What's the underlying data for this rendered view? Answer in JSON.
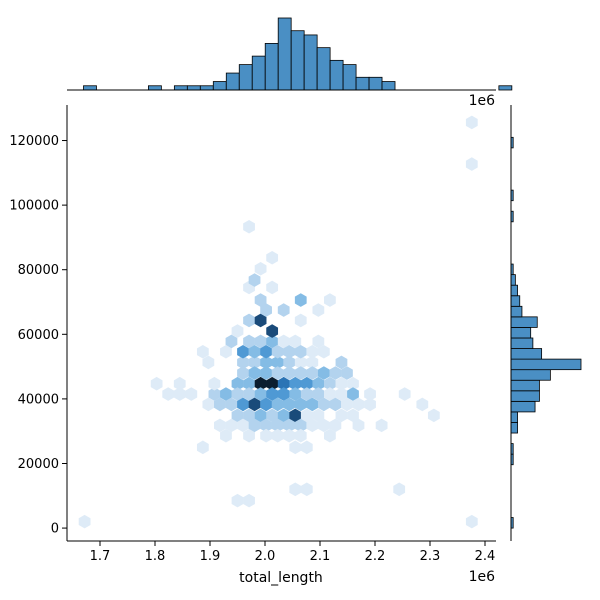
{
  "chart_data": {
    "type": "hexbin_joint",
    "xlabel": "total_length",
    "ylabel": "",
    "x_offset_label": "1e6",
    "marginal_x_offset_label": "1e6",
    "xlim": [
      1.64,
      2.42
    ],
    "ylim": [
      -4000,
      131000
    ],
    "x_ticks": [
      1.7,
      1.8,
      1.9,
      2.0,
      2.1,
      2.2,
      2.3,
      2.4
    ],
    "x_tick_labels": [
      "1.7",
      "1.8",
      "1.9",
      "2.0",
      "2.1",
      "2.2",
      "2.3",
      "2.4"
    ],
    "y_ticks": [
      0,
      20000,
      40000,
      60000,
      80000,
      100000,
      120000
    ],
    "y_tick_labels": [
      "0",
      "20000",
      "40000",
      "60000",
      "80000",
      "100000",
      "120000"
    ],
    "colors": {
      "hex_ramp": [
        "#deebf7",
        "#b3d3ee",
        "#84bce5",
        "#4f99d4",
        "#2b74b5",
        "#1a4b7a",
        "#0b1e30"
      ],
      "bar_fill": "#4a8fc4",
      "bar_edge": "#000000",
      "axis": "#000000"
    },
    "hexbins": [
      [
        1.672,
        2000,
        1
      ],
      [
        1.803,
        44700,
        1
      ],
      [
        1.824,
        41500,
        1
      ],
      [
        1.845,
        44700,
        1
      ],
      [
        1.845,
        41500,
        1
      ],
      [
        1.866,
        41500,
        1
      ],
      [
        1.887,
        54600,
        1
      ],
      [
        1.887,
        25000,
        1
      ],
      [
        1.897,
        38300,
        1
      ],
      [
        1.897,
        51300,
        1
      ],
      [
        1.908,
        41500,
        2
      ],
      [
        1.908,
        44700,
        1
      ],
      [
        1.918,
        38300,
        2
      ],
      [
        1.918,
        31800,
        1
      ],
      [
        1.929,
        41500,
        3
      ],
      [
        1.929,
        54600,
        1
      ],
      [
        1.929,
        28600,
        1
      ],
      [
        1.939,
        38300,
        2
      ],
      [
        1.939,
        31800,
        1
      ],
      [
        1.939,
        57800,
        2
      ],
      [
        1.95,
        44700,
        3
      ],
      [
        1.95,
        41500,
        2
      ],
      [
        1.95,
        34900,
        2
      ],
      [
        1.95,
        61000,
        1
      ],
      [
        1.95,
        8500,
        1
      ],
      [
        1.96,
        38300,
        4
      ],
      [
        1.96,
        51300,
        2
      ],
      [
        1.96,
        54600,
        4
      ],
      [
        1.96,
        31800,
        1
      ],
      [
        1.96,
        48000,
        2
      ],
      [
        1.971,
        44700,
        3
      ],
      [
        1.971,
        41500,
        2
      ],
      [
        1.971,
        57800,
        2
      ],
      [
        1.971,
        64300,
        2
      ],
      [
        1.971,
        93300,
        1
      ],
      [
        1.971,
        74500,
        1
      ],
      [
        1.971,
        8500,
        1
      ],
      [
        1.971,
        28600,
        1
      ],
      [
        1.971,
        34900,
        2
      ],
      [
        1.981,
        38300,
        6
      ],
      [
        1.981,
        51300,
        2
      ],
      [
        1.981,
        54600,
        3
      ],
      [
        1.981,
        31800,
        2
      ],
      [
        1.981,
        48000,
        3
      ],
      [
        1.981,
        76800,
        2
      ],
      [
        1.992,
        44700,
        7
      ],
      [
        1.992,
        41500,
        3
      ],
      [
        1.992,
        57800,
        2
      ],
      [
        1.992,
        64300,
        6
      ],
      [
        1.992,
        34900,
        3
      ],
      [
        1.992,
        70600,
        2
      ],
      [
        1.992,
        80300,
        1
      ],
      [
        2.002,
        38300,
        4
      ],
      [
        2.002,
        51300,
        3
      ],
      [
        2.002,
        54600,
        4
      ],
      [
        2.002,
        31800,
        2
      ],
      [
        2.002,
        48000,
        3
      ],
      [
        2.002,
        67500,
        2
      ],
      [
        2.002,
        28600,
        1
      ],
      [
        2.013,
        44700,
        7
      ],
      [
        2.013,
        41500,
        4
      ],
      [
        2.013,
        57800,
        3
      ],
      [
        2.013,
        61000,
        6
      ],
      [
        2.013,
        34900,
        2
      ],
      [
        2.013,
        74500,
        1
      ],
      [
        2.013,
        83700,
        1
      ],
      [
        2.023,
        38300,
        3
      ],
      [
        2.023,
        51300,
        3
      ],
      [
        2.023,
        54600,
        2
      ],
      [
        2.023,
        31800,
        2
      ],
      [
        2.023,
        48000,
        2
      ],
      [
        2.023,
        28600,
        1
      ],
      [
        2.034,
        44700,
        5
      ],
      [
        2.034,
        41500,
        4
      ],
      [
        2.034,
        57800,
        1
      ],
      [
        2.034,
        34900,
        3
      ],
      [
        2.034,
        67500,
        2
      ],
      [
        2.044,
        38300,
        3
      ],
      [
        2.044,
        51300,
        2
      ],
      [
        2.044,
        54600,
        2
      ],
      [
        2.044,
        31800,
        2
      ],
      [
        2.044,
        48000,
        2
      ],
      [
        2.044,
        28600,
        1
      ],
      [
        2.055,
        44700,
        4
      ],
      [
        2.055,
        41500,
        3
      ],
      [
        2.055,
        57800,
        1
      ],
      [
        2.055,
        34900,
        6
      ],
      [
        2.055,
        25000,
        1
      ],
      [
        2.055,
        12000,
        1
      ],
      [
        2.065,
        38300,
        3
      ],
      [
        2.065,
        51300,
        1
      ],
      [
        2.065,
        54600,
        2
      ],
      [
        2.065,
        31800,
        2
      ],
      [
        2.065,
        48000,
        2
      ],
      [
        2.065,
        70600,
        3
      ],
      [
        2.065,
        64300,
        1
      ],
      [
        2.065,
        28600,
        1
      ],
      [
        2.076,
        44700,
        4
      ],
      [
        2.076,
        41500,
        2
      ],
      [
        2.076,
        25000,
        1
      ],
      [
        2.076,
        12000,
        1
      ],
      [
        2.076,
        34900,
        1
      ],
      [
        2.086,
        38300,
        3
      ],
      [
        2.086,
        51300,
        1
      ],
      [
        2.086,
        31800,
        1
      ],
      [
        2.086,
        48000,
        2
      ],
      [
        2.086,
        54600,
        1
      ],
      [
        2.097,
        44700,
        3
      ],
      [
        2.097,
        41500,
        2
      ],
      [
        2.097,
        57800,
        1
      ],
      [
        2.097,
        34900,
        1
      ],
      [
        2.097,
        67500,
        1
      ],
      [
        2.107,
        38300,
        2
      ],
      [
        2.107,
        48000,
        3
      ],
      [
        2.107,
        31800,
        1
      ],
      [
        2.107,
        54600,
        1
      ],
      [
        2.118,
        44700,
        2
      ],
      [
        2.118,
        41500,
        1
      ],
      [
        2.118,
        28600,
        1
      ],
      [
        2.118,
        70600,
        1
      ],
      [
        2.128,
        38300,
        2
      ],
      [
        2.128,
        48000,
        2
      ],
      [
        2.128,
        31800,
        1
      ],
      [
        2.139,
        44700,
        1
      ],
      [
        2.139,
        41500,
        1
      ],
      [
        2.139,
        51300,
        2
      ],
      [
        2.139,
        34900,
        1
      ],
      [
        2.149,
        38300,
        1
      ],
      [
        2.149,
        48000,
        2
      ],
      [
        2.16,
        44700,
        1
      ],
      [
        2.16,
        41500,
        3
      ],
      [
        2.16,
        34900,
        1
      ],
      [
        2.17,
        38300,
        1
      ],
      [
        2.17,
        31800,
        1
      ],
      [
        2.191,
        41500,
        1
      ],
      [
        2.191,
        38300,
        1
      ],
      [
        2.212,
        31800,
        1
      ],
      [
        2.244,
        12000,
        1
      ],
      [
        2.254,
        41500,
        1
      ],
      [
        2.286,
        38300,
        1
      ],
      [
        2.307,
        34900,
        1
      ],
      [
        2.376,
        125600,
        1
      ],
      [
        2.376,
        112700,
        1
      ],
      [
        2.376,
        2000,
        1
      ]
    ],
    "marginal_x_histogram": {
      "bins_start": 1.67,
      "bin_width": 0.0236,
      "counts": [
        1,
        0,
        0,
        0,
        0,
        1,
        0,
        1,
        1,
        1,
        2,
        4,
        6,
        8,
        11,
        17,
        14,
        13,
        10,
        7,
        6,
        3,
        3,
        2,
        0,
        0,
        0,
        0,
        0,
        0,
        0,
        0,
        1,
        0,
        0,
        0,
        0,
        0
      ]
    },
    "marginal_y_histogram": {
      "bins_start": 0,
      "bin_width": 3270,
      "counts": [
        1,
        0,
        0,
        0,
        0,
        0,
        1,
        1,
        0,
        3,
        3,
        11,
        13,
        13,
        18,
        32,
        14,
        10,
        9,
        12,
        5,
        4,
        3,
        2,
        1,
        0,
        0,
        0,
        0,
        1,
        0,
        1,
        0,
        0,
        0,
        0,
        1,
        0,
        0
      ]
    }
  }
}
